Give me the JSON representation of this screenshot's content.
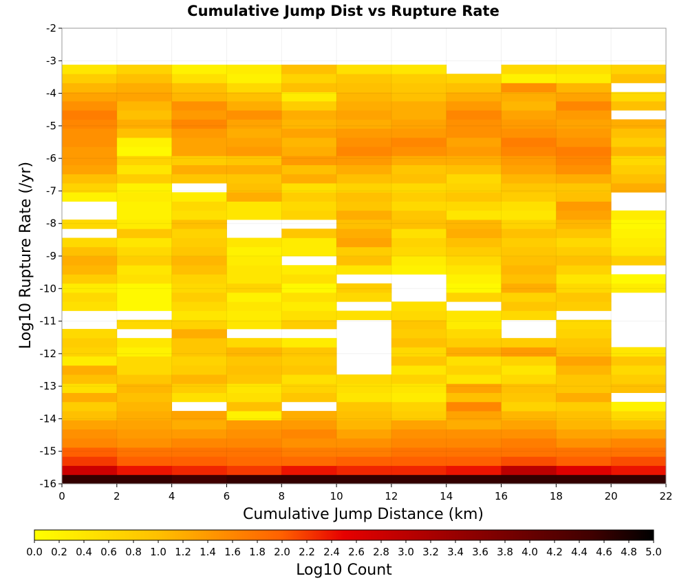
{
  "chart_data": {
    "type": "heatmap",
    "title": "Cumulative Jump Dist vs Rupture Rate",
    "xlabel": "Cumulative Jump Distance (km)",
    "ylabel": "Log10 Rupture Rate (/yr)",
    "xlim": [
      0,
      22
    ],
    "ylim": [
      -16,
      -2
    ],
    "x_ticks": [
      0,
      2,
      4,
      6,
      8,
      10,
      12,
      14,
      16,
      18,
      20,
      22
    ],
    "y_ticks": [
      -2,
      -3,
      -4,
      -5,
      -6,
      -7,
      -8,
      -9,
      -10,
      -11,
      -12,
      -13,
      -14,
      -15,
      -16
    ],
    "x_bin_width": 2,
    "y_bin_height": 0.28,
    "y_bin_count": 46,
    "x_bin_starts": [
      0,
      2,
      4,
      6,
      8,
      10,
      12,
      14,
      16,
      18,
      20
    ],
    "colorbar": {
      "label": "Log10 Count",
      "range": [
        0,
        5
      ],
      "ticks": [
        "0.0",
        "0.2",
        "0.4",
        "0.6",
        "0.8",
        "1.0",
        "1.2",
        "1.4",
        "1.6",
        "1.8",
        "2.0",
        "2.2",
        "2.4",
        "2.6",
        "2.8",
        "3.0",
        "3.2",
        "3.4",
        "3.6",
        "3.8",
        "4.0",
        "4.2",
        "4.4",
        "4.6",
        "4.8",
        "5.0"
      ],
      "stops": [
        {
          "v": 0.0,
          "color": "#ffff00"
        },
        {
          "v": 1.0,
          "color": "#ffc000"
        },
        {
          "v": 2.0,
          "color": "#ff6000"
        },
        {
          "v": 2.5,
          "color": "#e60000"
        },
        {
          "v": 3.5,
          "color": "#900000"
        },
        {
          "v": 4.5,
          "color": "#400000"
        },
        {
          "v": 5.0,
          "color": "#000000"
        }
      ]
    },
    "columns": [
      {
        "x": 0,
        "values": [
          4.6,
          2.8,
          2.2,
          2.0,
          1.6,
          1.5,
          1.3,
          1.0,
          0.8,
          1.2,
          0.5,
          1.0,
          1.2,
          0.3,
          0.7,
          0.8,
          0.6,
          null,
          null,
          0.5,
          0.6,
          0.3,
          0.8,
          1.1,
          1.2,
          1.0,
          0.6,
          null,
          0.6,
          null,
          null,
          0.2,
          0.7,
          1.0,
          1.3,
          1.4,
          1.4,
          1.5,
          1.5,
          1.6,
          1.7,
          1.5,
          1.3,
          1.1,
          0.8,
          0.4
        ]
      },
      {
        "x": 2,
        "values": [
          4.6,
          2.4,
          2.0,
          1.8,
          1.5,
          1.4,
          1.3,
          1.2,
          1.1,
          1.0,
          1.1,
          0.9,
          0.6,
          0.6,
          0.2,
          0.4,
          null,
          0.6,
          null,
          0.1,
          0.1,
          0.1,
          0.5,
          0.4,
          0.8,
          0.6,
          0.4,
          0.9,
          0.3,
          0.2,
          0.2,
          0.3,
          0.2,
          0.8,
          0.4,
          0.7,
          0.1,
          0.2,
          1.0,
          1.2,
          1.0,
          1.1,
          1.3,
          1.2,
          1.0,
          0.7
        ]
      },
      {
        "x": 4,
        "values": [
          4.5,
          2.3,
          2.0,
          1.8,
          1.6,
          1.4,
          1.2,
          1.3,
          null,
          0.5,
          0.8,
          1.1,
          0.8,
          0.7,
          0.9,
          0.9,
          1.2,
          0.7,
          0.4,
          0.6,
          0.8,
          0.6,
          0.7,
          1.0,
          1.1,
          0.9,
          0.8,
          0.7,
          1.0,
          0.5,
          0.6,
          0.3,
          null,
          0.9,
          1.2,
          0.8,
          1.3,
          1.3,
          1.4,
          1.6,
          1.4,
          1.5,
          1.1,
          1.0,
          0.5,
          0.2
        ]
      },
      {
        "x": 6,
        "values": [
          4.6,
          2.2,
          1.9,
          1.8,
          1.6,
          1.5,
          1.4,
          0.2,
          1.0,
          0.5,
          0.4,
          0.9,
          1.0,
          0.9,
          1.1,
          0.6,
          null,
          0.4,
          0.3,
          0.4,
          0.2,
          0.7,
          0.4,
          0.4,
          0.3,
          0.2,
          0.4,
          null,
          null,
          0.4,
          0.4,
          1.2,
          1.0,
          0.9,
          1.2,
          0.9,
          1.4,
          1.3,
          1.2,
          1.3,
          1.5,
          1.2,
          1.0,
          0.6,
          0.2,
          0.3
        ]
      },
      {
        "x": 8,
        "values": [
          4.6,
          2.4,
          1.9,
          1.7,
          1.5,
          1.6,
          1.4,
          1.2,
          null,
          0.9,
          0.7,
          0.5,
          0.9,
          0.8,
          0.9,
          0.3,
          null,
          0.8,
          0.5,
          0.3,
          0.5,
          0.1,
          0.5,
          0.3,
          null,
          0.3,
          0.3,
          0.9,
          null,
          0.7,
          0.6,
          0.8,
          0.5,
          1.2,
          1.0,
          1.4,
          1.2,
          1.1,
          1.3,
          1.1,
          1.2,
          0.8,
          0.3,
          1.0,
          0.7,
          1.0
        ]
      },
      {
        "x": 10,
        "values": [
          4.6,
          2.3,
          2.0,
          1.7,
          1.5,
          1.3,
          1.1,
          1.0,
          0.9,
          0.4,
          0.5,
          0.6,
          null,
          null,
          null,
          null,
          null,
          null,
          0.5,
          null,
          0.6,
          0.8,
          null,
          0.4,
          1.0,
          0.8,
          1.3,
          1.2,
          1.0,
          1.2,
          0.9,
          1.0,
          0.7,
          1.0,
          1.2,
          1.4,
          1.6,
          1.5,
          1.4,
          1.2,
          1.3,
          1.2,
          1.1,
          1.0,
          0.9,
          0.5
        ]
      },
      {
        "x": 12,
        "values": [
          4.6,
          2.3,
          2.0,
          1.8,
          1.6,
          1.5,
          1.3,
          0.8,
          0.7,
          0.3,
          0.4,
          0.7,
          0.4,
          0.9,
          0.6,
          1.0,
          0.8,
          0.9,
          0.6,
          0.5,
          null,
          null,
          null,
          0.2,
          0.3,
          0.6,
          0.7,
          0.5,
          1.0,
          0.9,
          0.6,
          0.8,
          0.6,
          1.0,
          0.9,
          1.2,
          1.5,
          1.6,
          1.4,
          1.3,
          1.2,
          1.2,
          1.0,
          0.9,
          0.8,
          0.4
        ]
      },
      {
        "x": 14,
        "values": [
          4.6,
          2.4,
          2.0,
          1.8,
          1.6,
          1.5,
          1.2,
          1.3,
          1.6,
          1.0,
          1.3,
          0.4,
          0.7,
          0.5,
          1.2,
          0.8,
          0.6,
          0.3,
          0.4,
          null,
          0.7,
          0.1,
          0.2,
          0.4,
          0.6,
          0.8,
          1.0,
          1.2,
          1.1,
          0.4,
          0.6,
          0.9,
          0.7,
          0.6,
          1.0,
          1.2,
          1.4,
          1.3,
          1.5,
          1.5,
          1.6,
          1.4,
          1.2,
          1.0,
          0.7,
          null
        ]
      },
      {
        "x": 16,
        "values": [
          4.6,
          3.0,
          2.1,
          1.8,
          1.7,
          1.5,
          1.3,
          1.1,
          0.7,
          0.9,
          1.0,
          0.6,
          0.4,
          0.7,
          1.4,
          0.8,
          null,
          null,
          0.6,
          0.9,
          0.7,
          1.2,
          1.0,
          1.1,
          1.0,
          0.9,
          0.8,
          1.0,
          0.7,
          0.4,
          0.5,
          0.8,
          0.9,
          1.1,
          1.3,
          1.4,
          1.6,
          1.7,
          1.5,
          1.4,
          1.3,
          1.1,
          1.2,
          1.5,
          0.2,
          0.6
        ]
      },
      {
        "x": 18,
        "values": [
          4.6,
          2.6,
          2.0,
          1.8,
          1.5,
          1.3,
          1.1,
          1.0,
          0.8,
          1.2,
          0.9,
          0.9,
          1.1,
          1.3,
          1.0,
          0.9,
          0.7,
          0.6,
          null,
          0.8,
          0.9,
          0.6,
          0.4,
          0.7,
          1.0,
          0.8,
          0.6,
          0.9,
          1.1,
          1.3,
          1.4,
          1.0,
          0.9,
          1.2,
          1.5,
          1.6,
          1.7,
          1.5,
          1.4,
          1.3,
          1.4,
          1.6,
          1.3,
          1.1,
          0.3,
          0.5
        ]
      },
      {
        "x": 20,
        "values": [
          4.6,
          2.4,
          2.1,
          1.8,
          1.6,
          1.3,
          1.0,
          0.6,
          0.2,
          null,
          1.0,
          0.8,
          0.6,
          0.9,
          0.4,
          null,
          null,
          null,
          null,
          null,
          null,
          0.3,
          0.1,
          null,
          0.8,
          0.4,
          0.3,
          0.2,
          0.1,
          0.3,
          null,
          null,
          1.2,
          1.0,
          0.8,
          0.6,
          1.1,
          0.8,
          1.0,
          1.2,
          null,
          1.0,
          0.6,
          null,
          1.0,
          0.7
        ]
      }
    ]
  }
}
